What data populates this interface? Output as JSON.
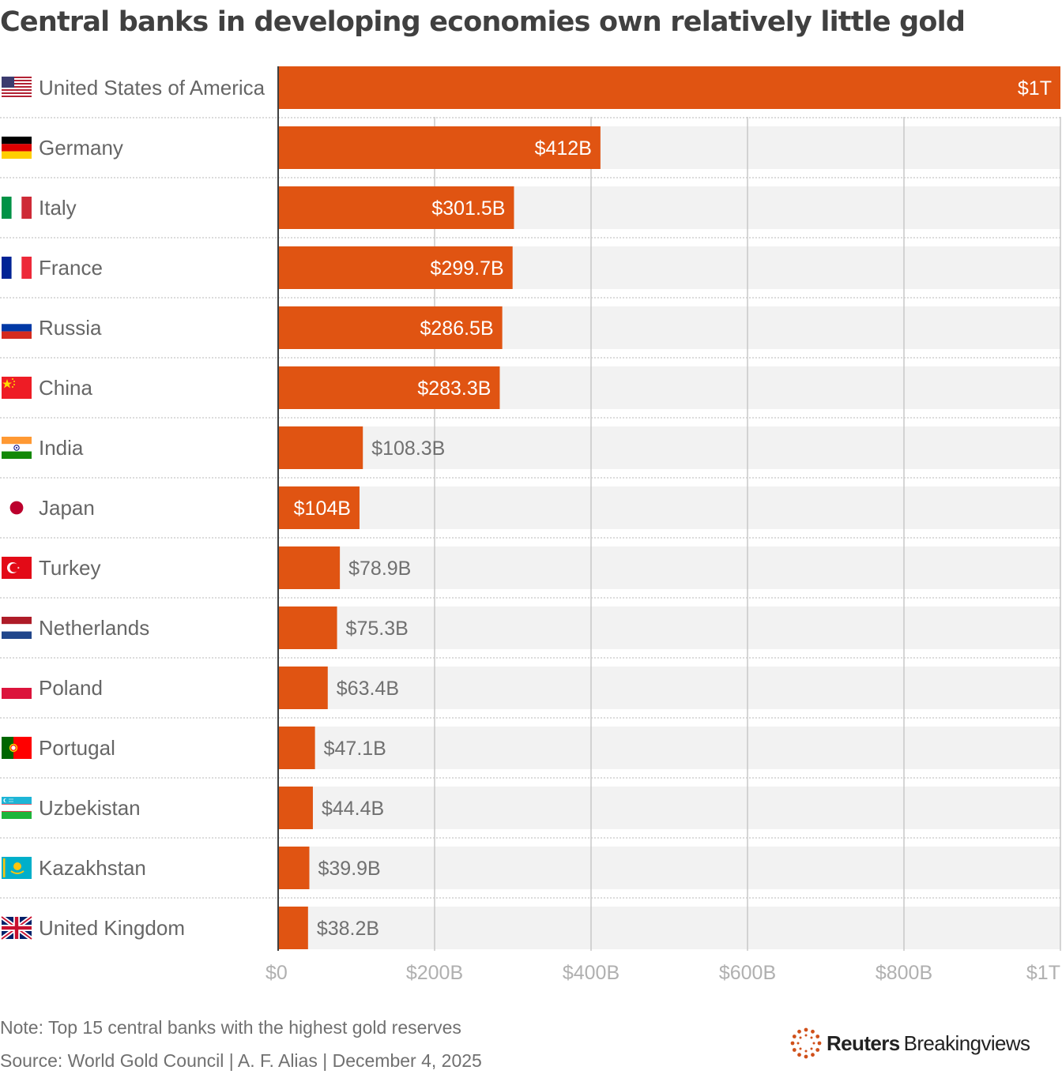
{
  "chart_data": {
    "type": "bar",
    "orientation": "horizontal",
    "title": "Central banks in developing economies own relatively little gold",
    "xlabel": "",
    "ylabel": "",
    "xlim": [
      0,
      1000
    ],
    "unit": "billion USD",
    "grid": true,
    "x_ticks": [
      {
        "value": 0,
        "label": "$0"
      },
      {
        "value": 200,
        "label": "$200B"
      },
      {
        "value": 400,
        "label": "$400B"
      },
      {
        "value": 600,
        "label": "$600B"
      },
      {
        "value": 800,
        "label": "$800B"
      },
      {
        "value": 1000,
        "label": "$1T"
      }
    ],
    "categories": [
      "United States of America",
      "Germany",
      "Italy",
      "France",
      "Russia",
      "China",
      "India",
      "Japan",
      "Turkey",
      "Netherlands",
      "Poland",
      "Portugal",
      "Uzbekistan",
      "Kazakhstan",
      "United Kingdom"
    ],
    "values": [
      1000,
      412,
      301.5,
      299.7,
      286.5,
      283.3,
      108.3,
      104,
      78.9,
      75.3,
      63.4,
      47.1,
      44.4,
      39.9,
      38.2
    ],
    "value_labels": [
      "$1T",
      "$412B",
      "$301.5B",
      "$299.7B",
      "$286.5B",
      "$283.3B",
      "$108.3B",
      "$104B",
      "$78.9B",
      "$75.3B",
      "$63.4B",
      "$47.1B",
      "$44.4B",
      "$39.9B",
      "$38.2B"
    ],
    "label_inside": [
      true,
      true,
      true,
      true,
      true,
      true,
      false,
      true,
      false,
      false,
      false,
      false,
      false,
      false,
      false
    ],
    "flags": [
      "us-flag-icon",
      "germany-flag-icon",
      "italy-flag-icon",
      "france-flag-icon",
      "russia-flag-icon",
      "china-flag-icon",
      "india-flag-icon",
      "japan-flag-icon",
      "turkey-flag-icon",
      "netherlands-flag-icon",
      "poland-flag-icon",
      "portugal-flag-icon",
      "uzbekistan-flag-icon",
      "kazakhstan-flag-icon",
      "uk-flag-icon"
    ],
    "colors": {
      "bar": "#e05412",
      "track": "#f2f2f2",
      "grid": "#c8c8c8",
      "axis": "#404040"
    }
  },
  "footer": {
    "note": "Note: Top 15 central banks with the highest gold reserves",
    "source": "Source: World Gold Council | A. F. Alias | December 4, 2025",
    "brand_strong": "Reuters",
    "brand_light": "Breakingviews"
  }
}
